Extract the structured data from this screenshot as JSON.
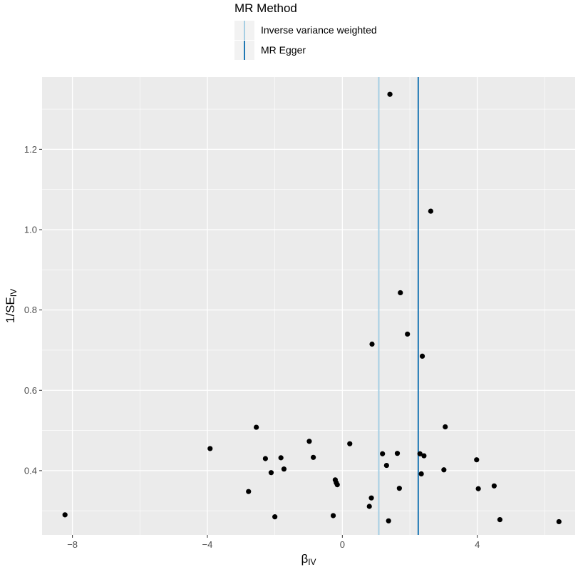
{
  "legend": {
    "title": "MR Method",
    "items": [
      {
        "label": "Inverse variance weighted",
        "color": "#a6cee3"
      },
      {
        "label": "MR Egger",
        "color": "#1f78b4"
      }
    ]
  },
  "chart_data": {
    "type": "scatter",
    "xlabel": "β",
    "xlabel_sub": "IV",
    "ylabel": "1/SE",
    "ylabel_sub": "IV",
    "xlim": [
      -8.9,
      6.9
    ],
    "ylim": [
      0.24,
      1.38
    ],
    "x_ticks": [
      -8,
      -4,
      0,
      4
    ],
    "x_tick_labels": [
      "−8",
      "−4",
      "0",
      "4"
    ],
    "y_ticks": [
      0.4,
      0.6,
      0.8,
      1.0,
      1.2
    ],
    "y_tick_labels": [
      "0.4",
      "0.6",
      "0.8",
      "1.0",
      "1.2"
    ],
    "grid": true,
    "panel_background": "#ebebeb",
    "point_color": "#000000",
    "legend_position": "top",
    "vlines": [
      {
        "method": "Inverse variance weighted",
        "x": 1.08,
        "color": "#a6cee3"
      },
      {
        "method": "MR Egger",
        "x": 2.25,
        "color": "#1f78b4"
      }
    ],
    "points": [
      {
        "x": -8.22,
        "y": 0.29
      },
      {
        "x": -3.92,
        "y": 0.455
      },
      {
        "x": -2.55,
        "y": 0.508
      },
      {
        "x": -2.78,
        "y": 0.348
      },
      {
        "x": -2.28,
        "y": 0.43
      },
      {
        "x": -2.11,
        "y": 0.395
      },
      {
        "x": -2.0,
        "y": 0.285
      },
      {
        "x": -1.82,
        "y": 0.432
      },
      {
        "x": -1.73,
        "y": 0.404
      },
      {
        "x": -0.98,
        "y": 0.473
      },
      {
        "x": -0.86,
        "y": 0.433
      },
      {
        "x": -0.27,
        "y": 0.288
      },
      {
        "x": -0.21,
        "y": 0.377
      },
      {
        "x": -0.18,
        "y": 0.37
      },
      {
        "x": -0.15,
        "y": 0.365
      },
      {
        "x": 0.22,
        "y": 0.467
      },
      {
        "x": 0.8,
        "y": 0.311
      },
      {
        "x": 0.86,
        "y": 0.332
      },
      {
        "x": 0.88,
        "y": 0.715
      },
      {
        "x": 1.19,
        "y": 0.442
      },
      {
        "x": 1.31,
        "y": 0.413
      },
      {
        "x": 1.37,
        "y": 0.275
      },
      {
        "x": 1.41,
        "y": 1.337
      },
      {
        "x": 1.63,
        "y": 0.443
      },
      {
        "x": 1.69,
        "y": 0.356
      },
      {
        "x": 1.72,
        "y": 0.843
      },
      {
        "x": 1.93,
        "y": 0.74
      },
      {
        "x": 2.3,
        "y": 0.442
      },
      {
        "x": 2.34,
        "y": 0.392
      },
      {
        "x": 2.37,
        "y": 0.685
      },
      {
        "x": 2.42,
        "y": 0.437
      },
      {
        "x": 2.62,
        "y": 1.046
      },
      {
        "x": 3.01,
        "y": 0.402
      },
      {
        "x": 3.05,
        "y": 0.509
      },
      {
        "x": 3.98,
        "y": 0.427
      },
      {
        "x": 4.03,
        "y": 0.355
      },
      {
        "x": 4.5,
        "y": 0.362
      },
      {
        "x": 4.67,
        "y": 0.278
      },
      {
        "x": 6.42,
        "y": 0.273
      }
    ]
  }
}
